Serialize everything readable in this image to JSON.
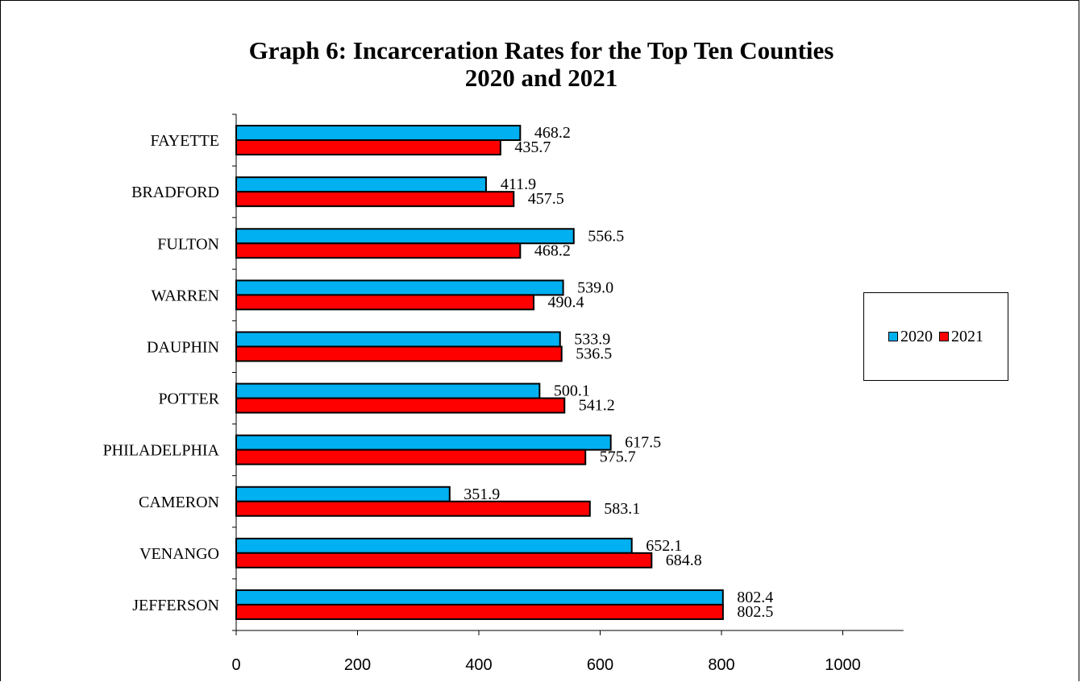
{
  "chart_data": {
    "type": "bar",
    "orientation": "horizontal",
    "title": "Graph 6: Incarceration Rates for the Top Ten Counties",
    "subtitle": "2020 and 2021",
    "categories": [
      "FAYETTE",
      "BRADFORD",
      "FULTON",
      "WARREN",
      "DAUPHIN",
      "POTTER",
      "PHILADELPHIA",
      "CAMERON",
      "VENANGO",
      "JEFFERSON"
    ],
    "series": [
      {
        "name": "2020",
        "color": "#00B0F0",
        "values": [
          468.2,
          411.9,
          556.5,
          539.0,
          533.9,
          500.1,
          617.5,
          351.9,
          652.1,
          802.4
        ],
        "labels": [
          "468.2",
          "411.9",
          "556.5",
          "539.0",
          "533.9",
          "500.1",
          "617.5",
          "351.9",
          "652.1",
          "802.4"
        ]
      },
      {
        "name": "2021",
        "color": "#FF0000",
        "values": [
          435.7,
          457.5,
          468.2,
          490.4,
          536.5,
          541.2,
          575.7,
          583.1,
          684.8,
          802.5
        ],
        "labels": [
          "435.7",
          "457.5",
          "468.2",
          "490.4",
          "536.5",
          "541.2",
          "575.7",
          "583.1",
          "684.8",
          "802.5"
        ]
      }
    ],
    "xlim": [
      0,
      1100
    ],
    "xticks": [
      "0",
      "200",
      "400",
      "600",
      "800",
      "1000"
    ],
    "xtick_values": [
      0,
      200,
      400,
      600,
      800,
      1000
    ],
    "grid": false,
    "legend_position": "right"
  }
}
